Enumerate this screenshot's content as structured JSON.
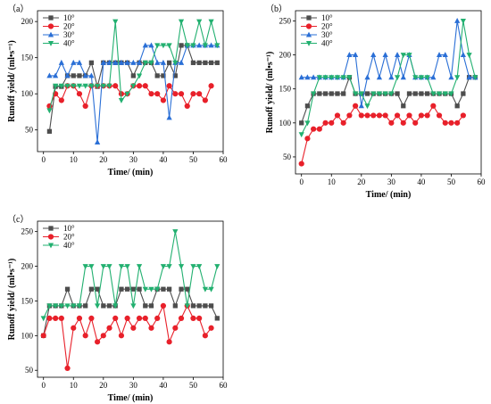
{
  "colors": {
    "10°": "#4d4d4d",
    "20°": "#e8202a",
    "30°": "#2a6fd6",
    "40°": "#22b070"
  },
  "chart_data": [
    {
      "type": "line",
      "panel_label": "（a）",
      "xlabel": "Time/ (min)",
      "ylabel": "Runoff yield/ (ml•s⁻¹)",
      "xlim": [
        -2,
        60
      ],
      "ylim": [
        20,
        215
      ],
      "xticks": [
        0,
        10,
        20,
        30,
        40,
        50,
        60
      ],
      "yticks": [
        50,
        100,
        150,
        200
      ],
      "legend_position": "top-left",
      "series": [
        {
          "name": "10°",
          "marker": "square",
          "x": [
            2,
            4,
            6,
            8,
            10,
            12,
            14,
            16,
            18,
            20,
            22,
            24,
            26,
            28,
            30,
            32,
            34,
            36,
            38,
            40,
            42,
            44,
            46,
            48,
            50,
            52,
            54,
            56,
            58
          ],
          "y": [
            48,
            110,
            110,
            125,
            125,
            125,
            125,
            143,
            110,
            143,
            143,
            143,
            143,
            143,
            125,
            143,
            143,
            143,
            125,
            125,
            143,
            125,
            167,
            167,
            143,
            143,
            143,
            143,
            143
          ]
        },
        {
          "name": "20°",
          "marker": "circle",
          "x": [
            2,
            4,
            6,
            8,
            10,
            12,
            14,
            16,
            18,
            20,
            22,
            24,
            26,
            28,
            30,
            32,
            34,
            36,
            38,
            40,
            42,
            44,
            46,
            48,
            50,
            52,
            54,
            56
          ],
          "y": [
            83,
            100,
            91,
            111,
            111,
            100,
            83,
            111,
            111,
            111,
            111,
            111,
            100,
            100,
            111,
            111,
            111,
            100,
            100,
            91,
            111,
            100,
            100,
            83,
            100,
            100,
            91,
            111
          ]
        },
        {
          "name": "30°",
          "marker": "triangle-up",
          "x": [
            2,
            4,
            6,
            8,
            10,
            12,
            14,
            16,
            18,
            20,
            22,
            24,
            26,
            28,
            30,
            32,
            34,
            36,
            38,
            40,
            42,
            44,
            46,
            48,
            50,
            52,
            54,
            56,
            58
          ],
          "y": [
            125,
            125,
            143,
            125,
            143,
            143,
            125,
            125,
            33,
            143,
            143,
            143,
            143,
            143,
            143,
            143,
            167,
            167,
            143,
            143,
            67,
            143,
            143,
            167,
            167,
            167,
            167,
            167,
            167
          ]
        },
        {
          "name": "40°",
          "marker": "triangle-down",
          "x": [
            2,
            4,
            6,
            8,
            10,
            12,
            14,
            16,
            18,
            20,
            22,
            24,
            26,
            28,
            30,
            32,
            34,
            36,
            38,
            40,
            42,
            44,
            46,
            48,
            50,
            52,
            54,
            56,
            58
          ],
          "y": [
            77,
            111,
            111,
            111,
            111,
            111,
            111,
            111,
            111,
            111,
            111,
            200,
            91,
            100,
            111,
            125,
            143,
            143,
            167,
            167,
            167,
            143,
            200,
            167,
            167,
            200,
            167,
            200,
            167
          ]
        }
      ]
    },
    {
      "type": "line",
      "panel_label": "（b）",
      "xlabel": "Time/ (min)",
      "ylabel": "Runoff yield/ (ml•s⁻¹)",
      "xlim": [
        -2,
        60
      ],
      "ylim": [
        25,
        265
      ],
      "xticks": [
        0,
        10,
        20,
        30,
        40,
        50,
        60
      ],
      "yticks": [
        50,
        100,
        150,
        200,
        250
      ],
      "legend_position": "top-left",
      "series": [
        {
          "name": "10°",
          "marker": "square",
          "x": [
            0,
            2,
            4,
            6,
            8,
            10,
            12,
            14,
            16,
            18,
            20,
            22,
            24,
            26,
            28,
            30,
            32,
            34,
            36,
            38,
            40,
            42,
            44,
            46,
            48,
            50,
            52,
            54,
            56,
            58
          ],
          "y": [
            100,
            125,
            143,
            143,
            143,
            143,
            143,
            143,
            167,
            143,
            143,
            143,
            143,
            143,
            143,
            143,
            143,
            125,
            143,
            143,
            143,
            143,
            143,
            143,
            143,
            143,
            125,
            143,
            167,
            167
          ]
        },
        {
          "name": "20°",
          "marker": "circle",
          "x": [
            0,
            2,
            4,
            6,
            8,
            10,
            12,
            14,
            16,
            18,
            20,
            22,
            24,
            26,
            28,
            30,
            32,
            34,
            36,
            38,
            40,
            42,
            44,
            46,
            48,
            50,
            52,
            54
          ],
          "y": [
            40,
            77,
            91,
            91,
            100,
            100,
            111,
            100,
            111,
            125,
            111,
            111,
            111,
            111,
            111,
            100,
            111,
            100,
            111,
            100,
            111,
            111,
            125,
            111,
            100,
            100,
            100,
            111
          ]
        },
        {
          "name": "30°",
          "marker": "triangle-up",
          "x": [
            0,
            2,
            4,
            6,
            8,
            10,
            12,
            14,
            16,
            18,
            20,
            22,
            24,
            26,
            28,
            30,
            32,
            34,
            36,
            38,
            40,
            42,
            44,
            46,
            48,
            50,
            52,
            54,
            56,
            58
          ],
          "y": [
            167,
            167,
            167,
            167,
            167,
            167,
            167,
            167,
            200,
            200,
            125,
            167,
            200,
            167,
            200,
            167,
            200,
            167,
            200,
            167,
            167,
            167,
            167,
            200,
            200,
            167,
            250,
            200,
            167,
            167
          ]
        },
        {
          "name": "40°",
          "marker": "triangle-down",
          "x": [
            0,
            2,
            4,
            6,
            8,
            10,
            12,
            14,
            16,
            18,
            20,
            22,
            24,
            26,
            28,
            30,
            32,
            34,
            36,
            38,
            40,
            42,
            44,
            46,
            48,
            50,
            52,
            54,
            56,
            58
          ],
          "y": [
            83,
            100,
            143,
            167,
            167,
            167,
            167,
            167,
            167,
            143,
            143,
            125,
            143,
            143,
            143,
            143,
            167,
            200,
            200,
            167,
            167,
            167,
            143,
            143,
            143,
            143,
            167,
            250,
            200,
            167
          ]
        }
      ]
    },
    {
      "type": "line",
      "panel_label": "（c）",
      "xlabel": "Time/ (min)",
      "ylabel": "Runoff yield/ (ml•s⁻¹)",
      "xlim": [
        -2,
        60
      ],
      "ylim": [
        40,
        265
      ],
      "xticks": [
        0,
        10,
        20,
        30,
        40,
        50,
        60
      ],
      "yticks": [
        50,
        100,
        150,
        200,
        250
      ],
      "legend_position": "top-left",
      "series": [
        {
          "name": "10°",
          "marker": "square",
          "x": [
            0,
            2,
            4,
            6,
            8,
            10,
            12,
            14,
            16,
            18,
            20,
            22,
            24,
            26,
            28,
            30,
            32,
            34,
            36,
            38,
            40,
            42,
            44,
            46,
            48,
            50,
            52,
            54,
            56,
            58
          ],
          "y": [
            100,
            143,
            143,
            143,
            167,
            143,
            143,
            143,
            167,
            167,
            143,
            143,
            143,
            167,
            167,
            167,
            167,
            143,
            143,
            167,
            167,
            167,
            143,
            167,
            167,
            143,
            143,
            143,
            143,
            125
          ]
        },
        {
          "name": "20°",
          "marker": "circle",
          "x": [
            0,
            2,
            4,
            6,
            8,
            10,
            12,
            14,
            16,
            18,
            20,
            22,
            24,
            26,
            28,
            30,
            32,
            34,
            36,
            38,
            40,
            42,
            44,
            46,
            48,
            50,
            52,
            54,
            56
          ],
          "y": [
            100,
            125,
            125,
            125,
            53,
            111,
            125,
            100,
            125,
            91,
            100,
            111,
            125,
            100,
            125,
            111,
            125,
            125,
            111,
            125,
            143,
            91,
            111,
            125,
            143,
            125,
            125,
            100,
            111
          ]
        },
        {
          "name": "40°",
          "marker": "triangle-down",
          "x": [
            0,
            2,
            4,
            6,
            8,
            10,
            12,
            14,
            16,
            18,
            20,
            22,
            24,
            26,
            28,
            30,
            32,
            34,
            36,
            38,
            40,
            42,
            44,
            46,
            48,
            50,
            52,
            54,
            56,
            58
          ],
          "y": [
            125,
            143,
            143,
            143,
            143,
            143,
            143,
            200,
            200,
            143,
            200,
            200,
            143,
            200,
            200,
            143,
            200,
            167,
            167,
            167,
            200,
            200,
            250,
            200,
            143,
            200,
            200,
            167,
            167,
            200
          ]
        }
      ]
    }
  ]
}
